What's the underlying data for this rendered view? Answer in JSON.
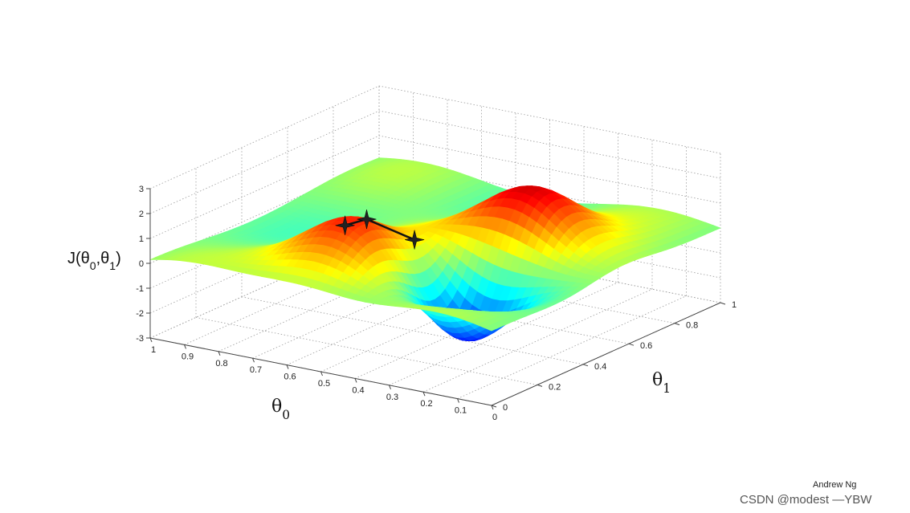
{
  "chart_data": {
    "type": "surface",
    "title": "",
    "zlabel": "J(θ0,θ1)",
    "xlabel": "θ0",
    "ylabel": "θ1",
    "xlim": [
      0,
      1
    ],
    "ylim": [
      0,
      1
    ],
    "zlim": [
      -3,
      3
    ],
    "grid": true,
    "x_ticks": [
      "1",
      "0.9",
      "0.8",
      "0.7",
      "0.6",
      "0.5",
      "0.4",
      "0.3",
      "0.2",
      "0.1",
      "0"
    ],
    "y_ticks": [
      "0",
      "0.2",
      "0.4",
      "0.6",
      "0.8",
      "1"
    ],
    "z_ticks": [
      "3",
      "2",
      "1",
      "0",
      "-1",
      "-2",
      "-3"
    ],
    "colormap": "jet",
    "features": [
      {
        "kind": "peak",
        "x": 0.55,
        "y": 0.2,
        "z": 2.2
      },
      {
        "kind": "peak",
        "x": 0.28,
        "y": 0.58,
        "z": 2.7
      },
      {
        "kind": "valley",
        "x": 0.28,
        "y": 0.3,
        "z": -2.6
      }
    ],
    "descent_path": [
      {
        "x": 0.55,
        "y": 0.18,
        "z": 2.0
      },
      {
        "x": 0.5,
        "y": 0.2,
        "z": 2.3
      },
      {
        "x": 0.4,
        "y": 0.26,
        "z": 1.5
      }
    ]
  },
  "footer": {
    "credit": "Andrew Ng",
    "watermark": "CSDN @modest —YBW"
  }
}
